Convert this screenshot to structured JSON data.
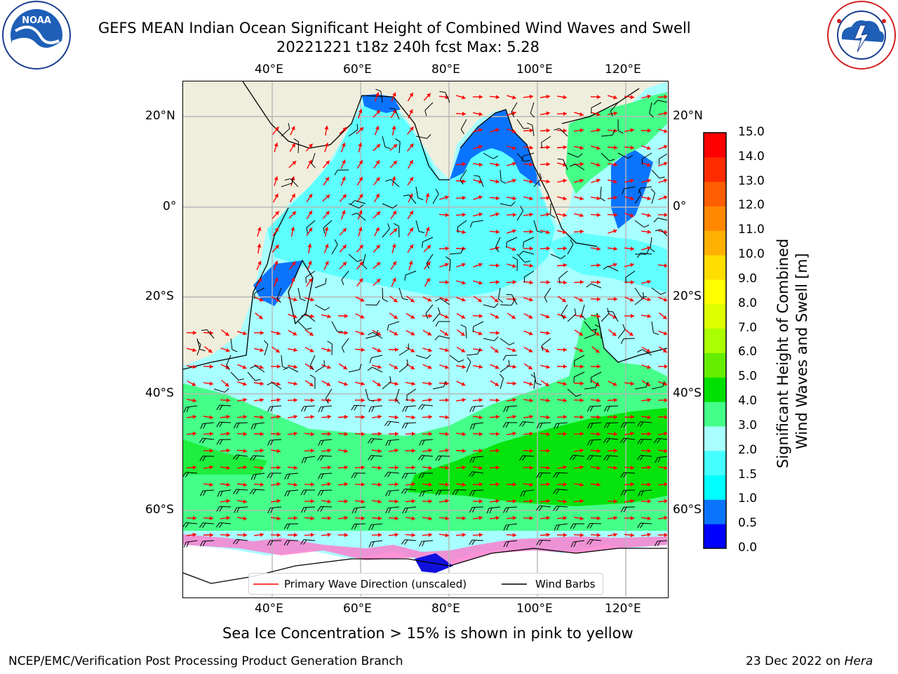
{
  "header": {
    "title_line1": "GEFS MEAN Indian Ocean Significant Height of Combined Wind Waves and Swell",
    "title_line2": "20221221 t18z 240h fcst   Max: 5.28"
  },
  "logos": {
    "left": {
      "name": "noaa-logo",
      "text": "NOAA",
      "ring_text": "NATIONAL OCEANIC AND ATMOSPHERIC ADMINISTRATION • U.S. DEPARTMENT OF COMMERCE"
    },
    "right": {
      "name": "nws-logo",
      "ring_text": "NATIONAL WEATHER SERVICE"
    }
  },
  "map": {
    "lon_ticks_top": [
      "40°E",
      "60°E",
      "80°E",
      "100°E",
      "120°E"
    ],
    "lon_ticks_bottom": [
      "40°E",
      "60°E",
      "80°E",
      "100°E",
      "120°E"
    ],
    "lat_ticks_left": [
      "20°N",
      "0°",
      "20°S",
      "40°S",
      "60°S"
    ],
    "lat_ticks_right": [
      "20°N",
      "0°",
      "20°S",
      "40°S",
      "60°S"
    ],
    "colors": {
      "land": "#efeedc",
      "ice_free": "#ffffff",
      "wave_arrow": "#ff0000",
      "wind_barb": "#000000"
    }
  },
  "legend": {
    "wave_label": "Primary Wave Direction (unscaled)",
    "wind_label": "Wind Barbs"
  },
  "colorbar": {
    "label_line1": "Significant Height of Combined",
    "label_line2": "Wind Waves and Swell [m]",
    "ticks": [
      "0.0",
      "0.5",
      "1.0",
      "1.5",
      "2.0",
      "3.0",
      "4.0",
      "5.0",
      "6.0",
      "7.0",
      "8.0",
      "9.0",
      "10.0",
      "11.0",
      "12.0",
      "13.0",
      "14.0",
      "15.0"
    ],
    "colors": [
      "#0000ff",
      "#0a74ff",
      "#00ffff",
      "#44ffff",
      "#a8ffff",
      "#44ff88",
      "#00e000",
      "#66ee00",
      "#aaff00",
      "#ddff00",
      "#ffff00",
      "#ffdd00",
      "#ffb000",
      "#ff8800",
      "#ff5e00",
      "#ff2c00",
      "#ff0000"
    ]
  },
  "footer": {
    "note": "Sea Ice Concentration > 15% is shown in pink to yellow",
    "credit": "NCEP/EMC/Verification Post Processing Product Generation Branch",
    "date": "23 Dec 2022 on ",
    "host": "Hera"
  }
}
